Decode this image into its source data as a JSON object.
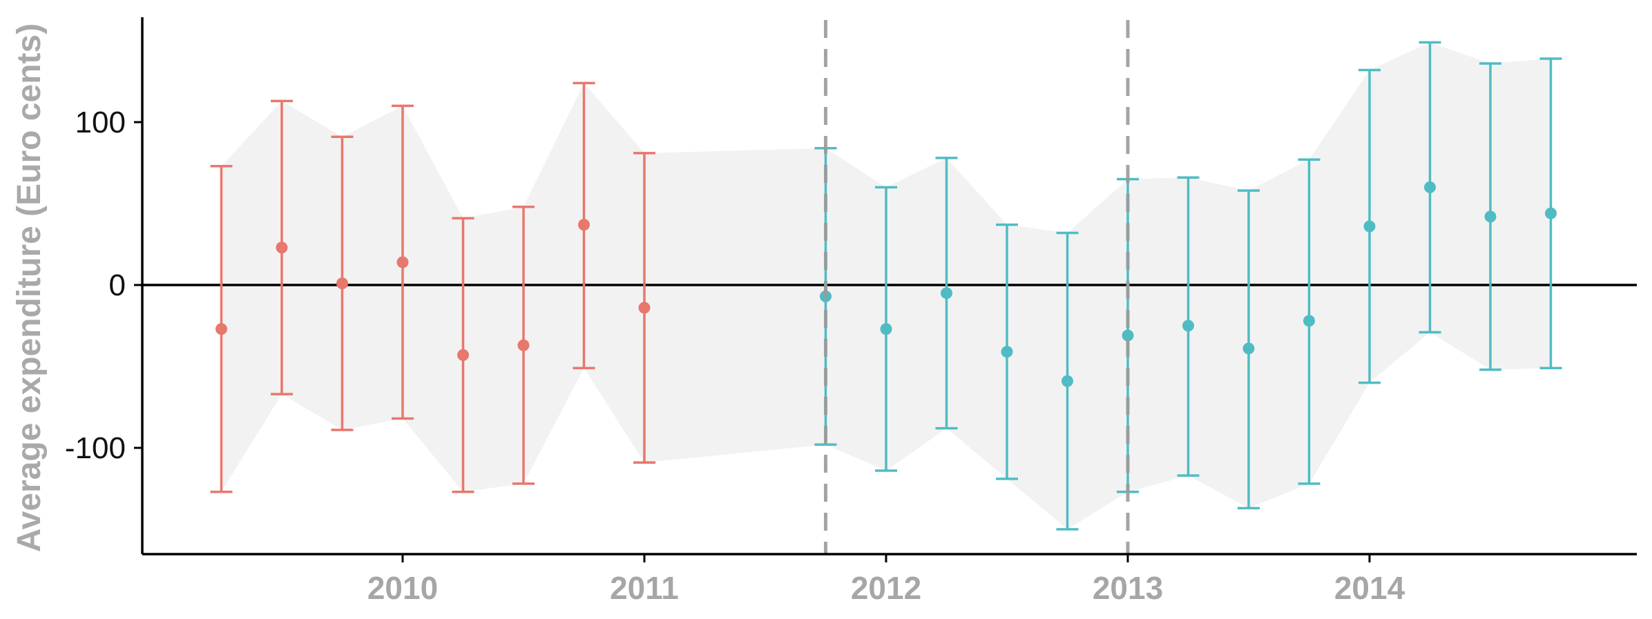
{
  "chart_data": {
    "type": "scatter",
    "title": "",
    "xlabel": "",
    "ylabel": "Average expenditure (Euro cents)",
    "xlim": [
      2009.0,
      2015.0
    ],
    "ylim": [
      -165,
      165
    ],
    "x_ticks": [
      2010,
      2011,
      2012,
      2013,
      2014
    ],
    "x_tick_labels": [
      "2010",
      "2011",
      "2012",
      "2013",
      "2014"
    ],
    "y_ticks": [
      -100,
      0,
      100
    ],
    "y_tick_labels": [
      "-100",
      "0",
      "100"
    ],
    "grid": false,
    "legend": "none",
    "zero_line": 0,
    "vertical_markers": [
      2011.75,
      2013.0
    ],
    "colors": {
      "before": "#e8776c",
      "after": "#4fbcc4",
      "band": "#f2f2f2",
      "marker_line": "#9a9a9a",
      "axis": "#000000"
    },
    "series": [
      {
        "group": "before",
        "points": [
          {
            "x": 2009.25,
            "y": -27,
            "low": -127,
            "high": 73
          },
          {
            "x": 2009.5,
            "y": 23,
            "low": -67,
            "high": 113
          },
          {
            "x": 2009.75,
            "y": 1,
            "low": -89,
            "high": 91
          },
          {
            "x": 2010.0,
            "y": 14,
            "low": -82,
            "high": 110
          },
          {
            "x": 2010.25,
            "y": -43,
            "low": -127,
            "high": 41
          },
          {
            "x": 2010.5,
            "y": -37,
            "low": -122,
            "high": 48
          },
          {
            "x": 2010.75,
            "y": 37,
            "low": -51,
            "high": 124
          },
          {
            "x": 2011.0,
            "y": -14,
            "low": -109,
            "high": 81
          }
        ]
      },
      {
        "group": "after",
        "points": [
          {
            "x": 2011.75,
            "y": -7,
            "low": -98,
            "high": 84
          },
          {
            "x": 2012.0,
            "y": -27,
            "low": -114,
            "high": 60
          },
          {
            "x": 2012.25,
            "y": -5,
            "low": -88,
            "high": 78
          },
          {
            "x": 2012.5,
            "y": -41,
            "low": -119,
            "high": 37
          },
          {
            "x": 2012.75,
            "y": -59,
            "low": -150,
            "high": 32
          },
          {
            "x": 2013.0,
            "y": -31,
            "low": -127,
            "high": 65
          },
          {
            "x": 2013.25,
            "y": -25,
            "low": -117,
            "high": 66
          },
          {
            "x": 2013.5,
            "y": -39,
            "low": -137,
            "high": 58
          },
          {
            "x": 2013.75,
            "y": -22,
            "low": -122,
            "high": 77
          },
          {
            "x": 2014.0,
            "y": 36,
            "low": -60,
            "high": 132
          },
          {
            "x": 2014.25,
            "y": 60,
            "low": -29,
            "high": 149
          },
          {
            "x": 2014.5,
            "y": 42,
            "low": -52,
            "high": 136
          },
          {
            "x": 2014.75,
            "y": 44,
            "low": -51,
            "high": 139
          }
        ]
      }
    ]
  }
}
